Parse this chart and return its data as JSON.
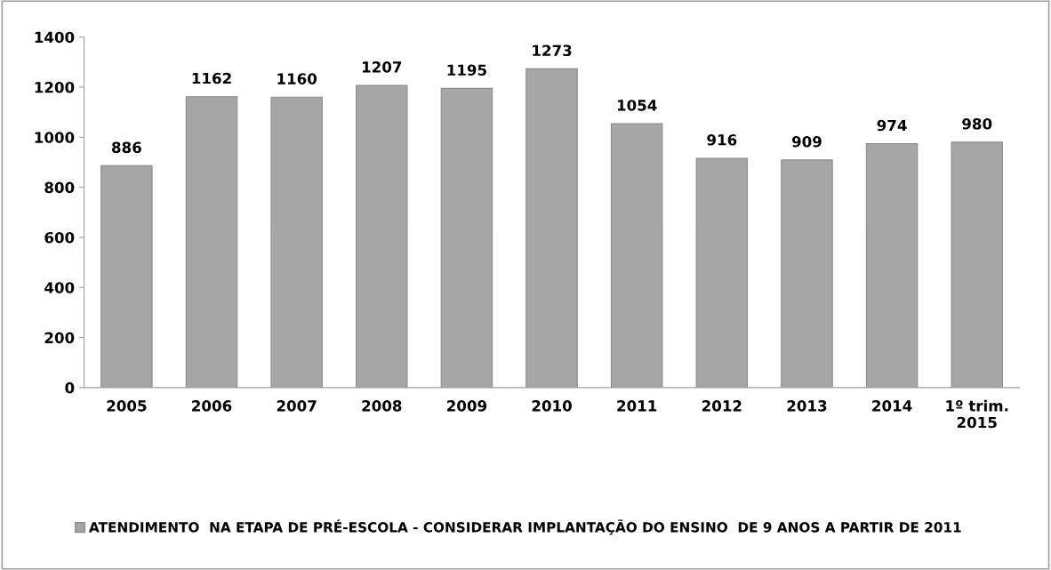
{
  "chart_data": {
    "type": "bar",
    "categories": [
      "2005",
      "2006",
      "2007",
      "2008",
      "2009",
      "2010",
      "2011",
      "2012",
      "2013",
      "2014",
      "1º trim.\n2015"
    ],
    "series": [
      {
        "name": "ATENDIMENTO  NA ETAPA DE PRÉ-ESCOLA - CONSIDERAR IMPLANTAÇÃO DO ENSINO  DE 9 ANOS A PARTIR DE 2011",
        "color": "#a6a6a6",
        "values": [
          886,
          1162,
          1160,
          1207,
          1195,
          1273,
          1054,
          916,
          909,
          974,
          980
        ]
      }
    ],
    "ylim": [
      0,
      1400
    ],
    "yticks": [
      0,
      200,
      400,
      600,
      800,
      1000,
      1200,
      1400
    ],
    "data_labels": true,
    "grid": false,
    "legend": "bottom left"
  }
}
